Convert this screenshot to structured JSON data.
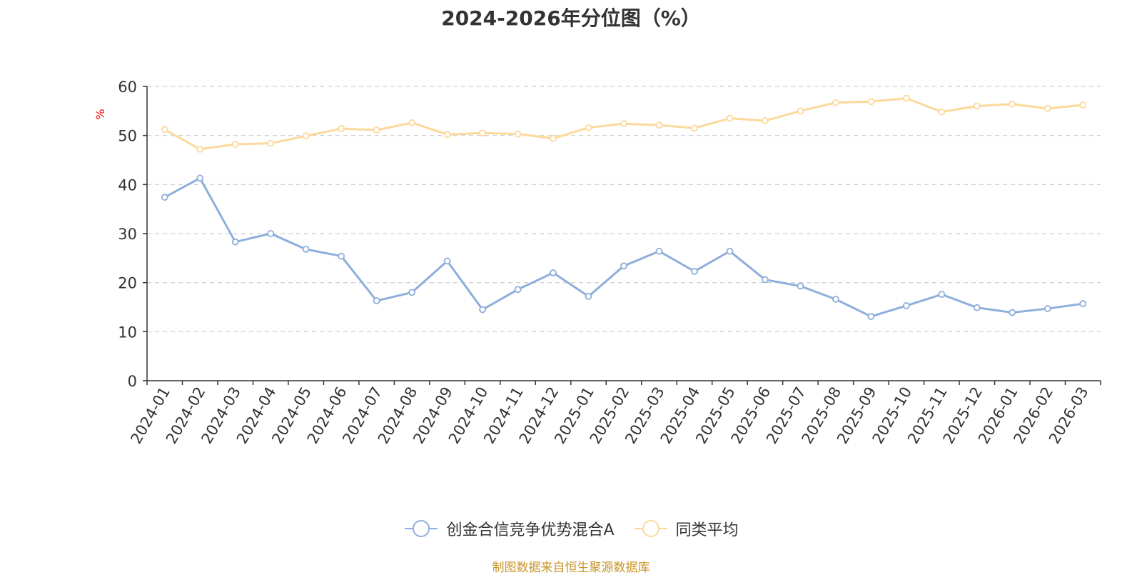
{
  "chart_data": {
    "type": "line",
    "title": "2024-2026年分位图（%）",
    "ylabel": "%",
    "ylim": [
      0,
      60
    ],
    "yticks": [
      0,
      10,
      20,
      30,
      40,
      50,
      60
    ],
    "grid": true,
    "legend_position": "bottom",
    "x": [
      "2024-01",
      "2024-02",
      "2024-03",
      "2024-04",
      "2024-05",
      "2024-06",
      "2024-07",
      "2024-08",
      "2024-09",
      "2024-10",
      "2024-11",
      "2024-12",
      "2025-01",
      "2025-02",
      "2025-03",
      "2025-04",
      "2025-05",
      "2025-06",
      "2025-07",
      "2025-08",
      "2025-09",
      "2025-10",
      "2025-11",
      "2025-12",
      "2026-01",
      "2026-02",
      "2026-03"
    ],
    "series": [
      {
        "name": "创金合信竞争优势混合A",
        "color": "#8eaedb",
        "values": [
          37.4,
          41.3,
          28.3,
          30.0,
          26.8,
          25.4,
          16.3,
          18.0,
          24.4,
          14.5,
          18.6,
          22.0,
          17.2,
          23.4,
          26.4,
          22.3,
          26.4,
          20.6,
          19.3,
          16.6,
          13.1,
          15.3,
          17.6,
          14.9,
          13.9,
          14.7,
          15.7
        ]
      },
      {
        "name": "同类平均",
        "color": "#fcd99b",
        "values": [
          51.2,
          47.2,
          48.2,
          48.4,
          49.9,
          51.4,
          51.1,
          52.6,
          50.2,
          50.5,
          50.3,
          49.4,
          51.6,
          52.4,
          52.1,
          51.5,
          53.5,
          53.0,
          55.0,
          56.7,
          56.9,
          57.6,
          54.8,
          56.0,
          56.4,
          55.5,
          56.2
        ]
      }
    ]
  },
  "source_text": "制图数据来自恒生聚源数据库",
  "colors": {
    "title": "#333333",
    "axis": "#333333",
    "grid": "#cccccc",
    "ylabel": "#ff0000",
    "source": "#c8962a"
  }
}
